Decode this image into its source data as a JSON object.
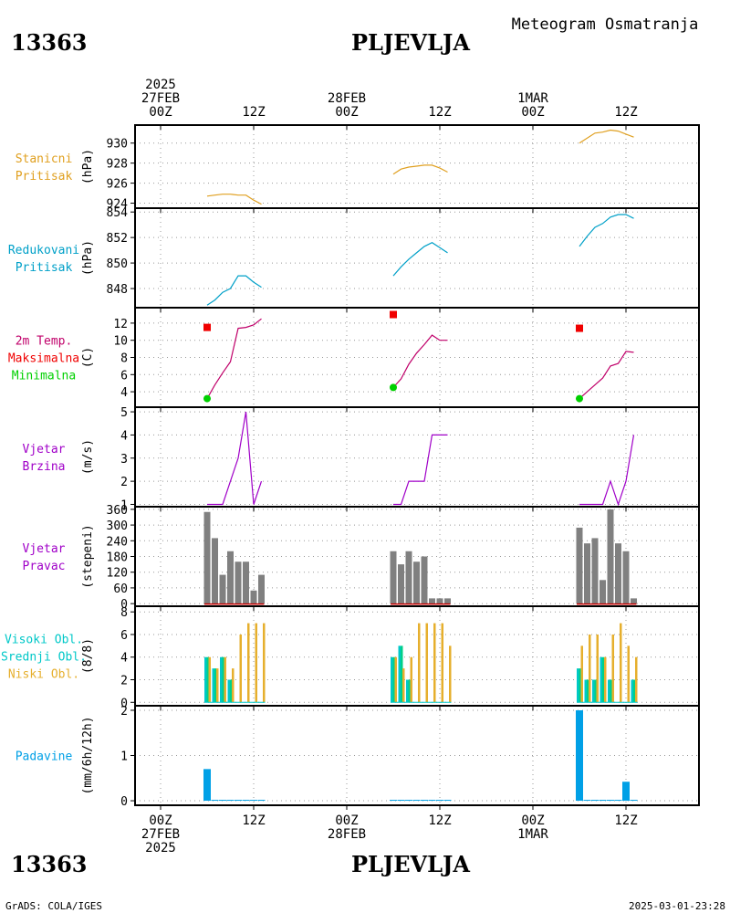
{
  "header": {
    "station_id": "13363",
    "station_name": "PLJEVLJA",
    "product_title": "Meteogram Osmatranja"
  },
  "footer": {
    "credit": "GrADS: COLA/IGES",
    "timestamp": "2025-03-01-23:28"
  },
  "time_axis": {
    "top_labels": [
      {
        "t": 0,
        "lines": [
          "2025",
          "27FEB",
          "00Z"
        ]
      },
      {
        "t": 12,
        "lines": [
          "12Z"
        ]
      },
      {
        "t": 24,
        "lines": [
          "28FEB",
          "00Z"
        ]
      },
      {
        "t": 36,
        "lines": [
          "12Z"
        ]
      },
      {
        "t": 48,
        "lines": [
          "1MAR",
          "00Z"
        ]
      },
      {
        "t": 60,
        "lines": [
          "12Z"
        ]
      }
    ],
    "bottom_labels": [
      {
        "t": 0,
        "lines": [
          "00Z",
          "27FEB",
          "2025"
        ]
      },
      {
        "t": 12,
        "lines": [
          "12Z"
        ]
      },
      {
        "t": 24,
        "lines": [
          "00Z",
          "28FEB"
        ]
      },
      {
        "t": 36,
        "lines": [
          "12Z"
        ]
      },
      {
        "t": 48,
        "lines": [
          "00Z",
          "1MAR"
        ]
      },
      {
        "t": 60,
        "lines": [
          "12Z"
        ]
      }
    ]
  },
  "colors": {
    "station_pressure": "#e0a020",
    "reduced_pressure": "#00a0c8",
    "temperature": "#c0006a",
    "max_marker": "#f00000",
    "min_marker": "#00d000",
    "wind": "#a000c8",
    "direction_bar": "#808080",
    "direction_zero": "#c80000",
    "high_cloud": "#00c8c8",
    "mid_cloud": "#00d088",
    "low_cloud": "#e6af2d",
    "precip": "#00a0e6",
    "grid": "#999999"
  },
  "chart_data": [
    {
      "id": "station-pressure",
      "type": "line",
      "labels": [
        "Stanicni",
        "Pritisak"
      ],
      "ylabel": "(hPa)",
      "ylim": [
        923.5,
        931.8
      ],
      "yticks": [
        924,
        926,
        928,
        930
      ],
      "segments": [
        {
          "x": [
            6,
            7,
            8,
            9,
            10,
            11,
            12,
            13
          ],
          "y": [
            924.7,
            924.8,
            924.9,
            924.9,
            924.8,
            924.8,
            924.3,
            923.9
          ]
        },
        {
          "x": [
            30,
            31,
            32,
            33,
            34,
            35,
            36,
            37
          ],
          "y": [
            926.9,
            927.4,
            927.6,
            927.7,
            927.8,
            927.8,
            927.5,
            927.1
          ]
        },
        {
          "x": [
            54,
            55,
            56,
            57,
            58,
            59,
            60,
            61
          ],
          "y": [
            930.0,
            930.5,
            931.0,
            931.1,
            931.3,
            931.2,
            930.9,
            930.6
          ]
        }
      ]
    },
    {
      "id": "reduced-pressure",
      "type": "line",
      "labels": [
        "Redukovani",
        "Pritisak"
      ],
      "ylabel": "(hPa)",
      "ylim": [
        846.5,
        854.3
      ],
      "yticks": [
        848,
        850,
        852,
        854
      ],
      "segments": [
        {
          "x": [
            6,
            7,
            8,
            9,
            10,
            11,
            12,
            13
          ],
          "y": [
            846.7,
            847.1,
            847.7,
            848.0,
            849.0,
            849.0,
            848.5,
            848.1
          ]
        },
        {
          "x": [
            30,
            31,
            32,
            33,
            34,
            35,
            36,
            37
          ],
          "y": [
            849.0,
            849.7,
            850.3,
            850.8,
            851.3,
            851.6,
            851.2,
            850.8
          ]
        },
        {
          "x": [
            54,
            55,
            56,
            57,
            58,
            59,
            60,
            61
          ],
          "y": [
            851.3,
            852.1,
            852.8,
            853.1,
            853.6,
            853.8,
            853.8,
            853.5
          ]
        }
      ]
    },
    {
      "id": "temperature",
      "type": "line",
      "labels": [
        "2m Temp.",
        "Maksimalna",
        "Minimalna"
      ],
      "ylabel": "(C)",
      "ylim": [
        2.2,
        13.8
      ],
      "yticks": [
        4,
        6,
        8,
        10,
        12
      ],
      "segments": [
        {
          "x": [
            6,
            7,
            8,
            9,
            10,
            11,
            12,
            13
          ],
          "y": [
            3.2,
            4.8,
            6.2,
            7.5,
            11.4,
            11.5,
            11.8,
            12.5
          ]
        },
        {
          "x": [
            30,
            31,
            32,
            33,
            34,
            35,
            36,
            37
          ],
          "y": [
            4.5,
            5.5,
            7.2,
            8.5,
            9.5,
            10.6,
            10.0,
            10.0
          ]
        },
        {
          "x": [
            54,
            55,
            56,
            57,
            58,
            59,
            60,
            61
          ],
          "y": [
            3.2,
            4.0,
            4.8,
            5.6,
            7.0,
            7.3,
            8.7,
            8.6
          ]
        }
      ],
      "maxima": [
        {
          "x": 6,
          "y": 11.5
        },
        {
          "x": 30,
          "y": 13.0
        },
        {
          "x": 54,
          "y": 11.4
        }
      ],
      "minima": [
        {
          "x": 6,
          "y": 3.2
        },
        {
          "x": 30,
          "y": 4.5
        },
        {
          "x": 54,
          "y": 3.2
        }
      ]
    },
    {
      "id": "wind-speed",
      "type": "line",
      "labels": [
        "Vjetar",
        "Brzina"
      ],
      "ylabel": "(m/s)",
      "ylim": [
        0.9,
        5.2
      ],
      "yticks": [
        1,
        2,
        3,
        4,
        5
      ],
      "segments": [
        {
          "x": [
            6,
            7,
            8,
            9,
            10,
            11,
            12,
            13
          ],
          "y": [
            1,
            1,
            1,
            2,
            3,
            5,
            1,
            2
          ]
        },
        {
          "x": [
            30,
            31,
            32,
            33,
            34,
            35,
            36,
            37
          ],
          "y": [
            1,
            1,
            2,
            2,
            2,
            4,
            4,
            4
          ]
        },
        {
          "x": [
            54,
            55,
            56,
            57,
            58,
            59,
            60,
            61
          ],
          "y": [
            1,
            1,
            1,
            1,
            2,
            1,
            2,
            4
          ]
        }
      ]
    },
    {
      "id": "wind-direction",
      "type": "bar",
      "labels": [
        "Vjetar",
        "Pravac"
      ],
      "ylabel": "(stepeni)",
      "ylim": [
        -10,
        370
      ],
      "yticks": [
        0,
        60,
        120,
        180,
        240,
        300,
        360
      ],
      "x": [
        6,
        7,
        8,
        9,
        10,
        11,
        12,
        13,
        30,
        31,
        32,
        33,
        34,
        35,
        36,
        37,
        54,
        55,
        56,
        57,
        58,
        59,
        60,
        61
      ],
      "values": [
        350,
        250,
        110,
        200,
        160,
        160,
        50,
        110,
        200,
        150,
        200,
        160,
        180,
        20,
        20,
        20,
        290,
        230,
        250,
        90,
        360,
        230,
        200,
        20
      ]
    },
    {
      "id": "cloud-cover",
      "type": "bar",
      "labels": [
        "Visoki Obl.",
        "Srednji Obl.",
        "Niski Obl."
      ],
      "ylabel": "(8/8)",
      "ylim": [
        -0.3,
        8.5
      ],
      "yticks": [
        0,
        2,
        4,
        6,
        8
      ],
      "x": [
        6,
        7,
        8,
        9,
        10,
        11,
        12,
        13,
        30,
        31,
        32,
        33,
        34,
        35,
        36,
        37,
        54,
        55,
        56,
        57,
        58,
        59,
        60,
        61
      ],
      "series": [
        {
          "name": "Visoki Obl.",
          "values": [
            4,
            3,
            4,
            2,
            0,
            0,
            0,
            0,
            4,
            5,
            2,
            0,
            0,
            0,
            0,
            0,
            3,
            2,
            2,
            4,
            2,
            0,
            0,
            2
          ]
        },
        {
          "name": "Srednji Obl.",
          "values": [
            4,
            3,
            4,
            2,
            0,
            0,
            0,
            0,
            4,
            5,
            2,
            0,
            0,
            0,
            0,
            0,
            3,
            2,
            2,
            4,
            2,
            0,
            0,
            2
          ]
        },
        {
          "name": "Niski Obl.",
          "values": [
            4,
            3,
            4,
            3,
            6,
            7,
            7,
            7,
            4,
            3,
            4,
            7,
            7,
            7,
            7,
            5,
            5,
            6,
            6,
            4,
            6,
            7,
            5,
            4
          ]
        }
      ]
    },
    {
      "id": "precipitation",
      "type": "bar",
      "labels": [
        "Padavine"
      ],
      "ylabel": "(mm/6h/12h)",
      "ylim": [
        -0.1,
        2.1
      ],
      "yticks": [
        0,
        1,
        2
      ],
      "x": [
        6,
        7,
        8,
        9,
        10,
        11,
        12,
        13,
        30,
        31,
        32,
        33,
        34,
        35,
        36,
        37,
        54,
        55,
        56,
        57,
        58,
        59,
        60,
        61
      ],
      "values": [
        0.7,
        0.02,
        0.02,
        0.02,
        0.02,
        0.02,
        0.02,
        0.02,
        0.02,
        0.02,
        0.02,
        0.02,
        0.02,
        0.02,
        0.02,
        0.02,
        2.0,
        0.02,
        0.02,
        0.02,
        0.02,
        0.02,
        0.42,
        0.02
      ]
    }
  ]
}
